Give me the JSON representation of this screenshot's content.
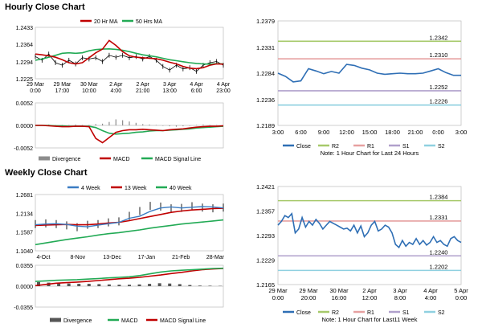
{
  "hourly": {
    "title": "Hourly Close Chart",
    "price_chart": {
      "type": "line",
      "legend": [
        "20 Hr MA",
        "50 Hrs MA"
      ],
      "y_ticks": [
        "1.2433",
        "1.2364",
        "1.2294",
        "1.2225"
      ],
      "ylim": [
        1.2225,
        1.2433
      ],
      "x_ticks": [
        [
          "29 Mar",
          "0:00"
        ],
        [
          "29 Mar",
          "17:00"
        ],
        [
          "30 Mar",
          "10:00"
        ],
        [
          "2 Apr",
          "4:00"
        ],
        [
          "2 Apr",
          "21:00"
        ],
        [
          "3 Apr",
          "13:00"
        ],
        [
          "4 Apr",
          "6:00"
        ],
        [
          "4 Apr",
          "23:00"
        ]
      ],
      "colors": {
        "ma20": "#c00000",
        "ma50": "#22aa55",
        "price": "#000000"
      },
      "series": [
        {
          "name": "20 Hr MA",
          "values": [
            1.2325,
            1.2322,
            1.2318,
            1.2312,
            1.2302,
            1.229,
            1.2285,
            1.229,
            1.231,
            1.233,
            1.2345,
            1.238,
            1.236,
            1.2335,
            1.2318,
            1.2312,
            1.231,
            1.2308,
            1.2306,
            1.23,
            1.2292,
            1.2285,
            1.2275,
            1.2268,
            1.2266,
            1.227,
            1.228,
            1.2285,
            1.2284
          ]
        },
        {
          "name": "50 Hrs MA",
          "values": [
            1.23,
            1.2305,
            1.2312,
            1.232,
            1.2328,
            1.233,
            1.2328,
            1.233,
            1.2338,
            1.2343,
            1.2345,
            1.2346,
            1.2344,
            1.234,
            1.2335,
            1.2328,
            1.2322,
            1.2318,
            1.2314,
            1.2308,
            1.2302,
            1.2298,
            1.2294,
            1.229,
            1.2287,
            1.2285,
            1.2284,
            1.2286,
            1.2285
          ]
        },
        {
          "name": "Close",
          "values": [
            1.2315,
            1.23,
            1.2325,
            1.229,
            1.228,
            1.23,
            1.2285,
            1.231,
            1.2305,
            1.231,
            1.2295,
            1.232,
            1.2312,
            1.232,
            1.231,
            1.2315,
            1.2305,
            1.2315,
            1.23,
            1.2275,
            1.226,
            1.228,
            1.2265,
            1.227,
            1.2255,
            1.228,
            1.229,
            1.2295,
            1.228
          ]
        }
      ]
    },
    "macd_chart": {
      "type": "bar",
      "y_ticks": [
        "0.0052",
        "0.0000",
        "-0.0052"
      ],
      "ylim": [
        -0.0052,
        0.0052
      ],
      "legend": [
        "Divergence",
        "MACD",
        "MACD Signal Line"
      ],
      "colors": {
        "divergence": "#8c8c8c",
        "macd": "#c00000",
        "signal": "#22aa55"
      },
      "divergence": [
        0.0001,
        0.0001,
        0.0002,
        0.0001,
        0.0001,
        0.0001,
        0.0002,
        0.0001,
        0.0001,
        0.0003,
        0.0004,
        0.0008,
        0.0014,
        0.0012,
        0.0009,
        0.0006,
        0.0003,
        0.0002,
        0.0001,
        -0.0001,
        -0.0002,
        -0.0003,
        -0.0002,
        -0.0001,
        0.0001,
        0.0002,
        0.0001,
        0.0001,
        0.0
      ],
      "macd": [
        0.0,
        0.0,
        -0.0001,
        -0.0002,
        -0.0003,
        -0.0003,
        -0.0002,
        -0.0002,
        -0.0003,
        -0.003,
        -0.004,
        -0.0028,
        -0.0016,
        -0.0012,
        -0.001,
        -0.001,
        -0.0009,
        -0.001,
        -0.0011,
        -0.0012,
        -0.001,
        -0.0009,
        -0.0008,
        -0.0006,
        -0.0004,
        -0.0003,
        -0.0002,
        -0.0002,
        -0.0001
      ],
      "signal": [
        0.0,
        0.0,
        0.0,
        -0.0001,
        -0.0001,
        -0.0002,
        -0.0002,
        -0.0002,
        -0.0002,
        -0.0005,
        -0.0012,
        -0.0018,
        -0.002,
        -0.0019,
        -0.0018,
        -0.0016,
        -0.0015,
        -0.0013,
        -0.0012,
        -0.0012,
        -0.0011,
        -0.001,
        -0.0009,
        -0.0008,
        -0.0006,
        -0.0005,
        -0.0004,
        -0.0003,
        -0.0002
      ]
    },
    "last24": {
      "type": "line",
      "y_ticks": [
        "1.2379",
        "1.2331",
        "1.2284",
        "1.2236",
        "1.2189"
      ],
      "ylim": [
        1.2189,
        1.2379
      ],
      "x_ticks": [
        "3:00",
        "6:00",
        "9:00",
        "12:00",
        "15:00",
        "18:00",
        "21:00",
        "0:00",
        "3:00"
      ],
      "levels": [
        {
          "name": "R2",
          "value": 1.2342,
          "label": "1.2342",
          "color": "#a6c96a"
        },
        {
          "name": "R1",
          "value": 1.231,
          "label": "1.2310",
          "color": "#e6a0a0"
        },
        {
          "name": "S1",
          "value": 1.2252,
          "label": "1.2252",
          "color": "#b0a0cc"
        },
        {
          "name": "S2",
          "value": 1.2226,
          "label": "1.2226",
          "color": "#8fd0e0"
        }
      ],
      "close": [
        1.2284,
        1.2278,
        1.2268,
        1.227,
        1.2292,
        1.2288,
        1.2283,
        1.2287,
        1.2284,
        1.23,
        1.2298,
        1.2293,
        1.229,
        1.2284,
        1.2282,
        1.2283,
        1.2284,
        1.2283,
        1.2283,
        1.2284,
        1.2288,
        1.2292,
        1.2285,
        1.228,
        1.228
      ],
      "legend": [
        "Close",
        "R2",
        "R1",
        "S1",
        "S2"
      ],
      "note": "Note: 1 Hour Chart for Last 24 Hours"
    }
  },
  "weekly": {
    "title": "Weekly Close Chart",
    "price_chart": {
      "type": "line",
      "legend": [
        "4 Week",
        "13 Week",
        "40 Week"
      ],
      "y_ticks": [
        "1.2681",
        "1.2134",
        "1.1587",
        "1.1040"
      ],
      "ylim": [
        1.104,
        1.2681
      ],
      "x_ticks": [
        "4-Oct",
        "8-Nov",
        "13-Dec",
        "17-Jan",
        "21-Feb",
        "28-Mar"
      ],
      "colors": {
        "w4": "#3a7cc3",
        "w13": "#c00000",
        "w40": "#22aa55",
        "price": "#000000"
      },
      "series": [
        {
          "name": "4 Week",
          "values": [
            1.18,
            1.182,
            1.183,
            1.181,
            1.176,
            1.174,
            1.179,
            1.183,
            1.187,
            1.199,
            1.205,
            1.219,
            1.229,
            1.232,
            1.229,
            1.231,
            1.233,
            1.232,
            1.229
          ]
        },
        {
          "name": "13 Week",
          "values": [
            1.178,
            1.179,
            1.18,
            1.181,
            1.18,
            1.18,
            1.182,
            1.185,
            1.187,
            1.192,
            1.198,
            1.204,
            1.21,
            1.216,
            1.22,
            1.223,
            1.225,
            1.227,
            1.228
          ]
        },
        {
          "name": "40 Week",
          "values": [
            1.122,
            1.127,
            1.132,
            1.137,
            1.141,
            1.145,
            1.15,
            1.154,
            1.157,
            1.161,
            1.165,
            1.17,
            1.174,
            1.178,
            1.182,
            1.185,
            1.188,
            1.191,
            1.194
          ]
        },
        {
          "name": "Close",
          "values": [
            1.182,
            1.184,
            1.182,
            1.178,
            1.173,
            1.18,
            1.182,
            1.187,
            1.19,
            1.206,
            1.22,
            1.235,
            1.233,
            1.228,
            1.229,
            1.234,
            1.23,
            1.228,
            1.23
          ]
        }
      ]
    },
    "macd_chart": {
      "type": "bar",
      "y_ticks": [
        "0.0355",
        "0.0000",
        "-0.0355"
      ],
      "ylim": [
        -0.0355,
        0.0355
      ],
      "legend": [
        "Divergence",
        "MACD",
        "MACD Signal Line"
      ],
      "colors": {
        "divergence": "#555555",
        "macd": "#22aa55",
        "signal": "#c00000"
      },
      "divergence": [
        0.007,
        0.006,
        0.005,
        0.0045,
        0.004,
        0.004,
        0.0035,
        0.003,
        0.0025,
        0.0025,
        0.003,
        0.004,
        0.005,
        0.0045,
        0.0035,
        0.002,
        0.001,
        0.0008,
        0.0005
      ],
      "macd": [
        0.008,
        0.009,
        0.01,
        0.0105,
        0.011,
        0.012,
        0.013,
        0.014,
        0.015,
        0.016,
        0.018,
        0.021,
        0.024,
        0.026,
        0.027,
        0.028,
        0.029,
        0.03,
        0.0305
      ],
      "signal": [
        0.001,
        0.003,
        0.005,
        0.006,
        0.007,
        0.008,
        0.0095,
        0.011,
        0.0125,
        0.0135,
        0.015,
        0.017,
        0.019,
        0.0215,
        0.0235,
        0.026,
        0.028,
        0.0292,
        0.03
      ]
    },
    "last1week": {
      "type": "line",
      "y_ticks": [
        "1.2421",
        "1.2357",
        "1.2293",
        "1.2229",
        "1.2165"
      ],
      "ylim": [
        1.2165,
        1.2421
      ],
      "x_ticks": [
        [
          "29 Mar",
          "0:00"
        ],
        [
          "29 Mar",
          "20:00"
        ],
        [
          "30 Mar",
          "16:00"
        ],
        [
          "2 Apr",
          "12:00"
        ],
        [
          "3 Apr",
          "8:00"
        ],
        [
          "4 Apr",
          "4:00"
        ],
        [
          "5 Apr",
          "0:00"
        ]
      ],
      "levels": [
        {
          "name": "R2",
          "value": 1.2384,
          "label": "1.2384",
          "color": "#a6c96a"
        },
        {
          "name": "R1",
          "value": 1.2331,
          "label": "1.2331",
          "color": "#e6a0a0"
        },
        {
          "name": "S1",
          "value": 1.224,
          "label": "1.2240",
          "color": "#b0a0cc"
        },
        {
          "name": "S2",
          "value": 1.2202,
          "label": "1.2202",
          "color": "#8fd0e0"
        }
      ],
      "close": [
        1.232,
        1.233,
        1.2345,
        1.234,
        1.235,
        1.23,
        1.231,
        1.234,
        1.2315,
        1.233,
        1.232,
        1.2335,
        1.2325,
        1.231,
        1.232,
        1.233,
        1.2325,
        1.232,
        1.2315,
        1.231,
        1.2312,
        1.2305,
        1.232,
        1.23,
        1.2318,
        1.229,
        1.23,
        1.232,
        1.233,
        1.2305,
        1.231,
        1.232,
        1.2315,
        1.23,
        1.227,
        1.2262,
        1.228,
        1.2265,
        1.2275,
        1.227,
        1.2285,
        1.227,
        1.228,
        1.2268,
        1.2275,
        1.229,
        1.2275,
        1.228,
        1.227,
        1.2265,
        1.2285,
        1.229,
        1.228,
        1.2275
      ],
      "legend": [
        "Close",
        "R2",
        "R1",
        "S1",
        "S2"
      ],
      "note": "Note: 1 Hour Chart for Last11 Week"
    }
  },
  "chart_data": [
    {
      "type": "line",
      "title": "Hourly Close Chart",
      "series": [
        "20 Hr MA",
        "50 Hrs MA"
      ],
      "ylim": [
        1.2225,
        1.2433
      ]
    },
    {
      "type": "bar",
      "title": "",
      "series": [
        "Divergence",
        "MACD",
        "MACD Signal Line"
      ],
      "ylim": [
        -0.0052,
        0.0052
      ]
    },
    {
      "type": "line",
      "title": "",
      "series": [
        "Close",
        "R2",
        "R1",
        "S1",
        "S2"
      ],
      "ylim": [
        1.2189,
        1.2379
      ]
    },
    {
      "type": "line",
      "title": "Weekly Close Chart",
      "series": [
        "4 Week",
        "13 Week",
        "40 Week"
      ],
      "ylim": [
        1.104,
        1.2681
      ]
    },
    {
      "type": "bar",
      "title": "",
      "series": [
        "Divergence",
        "MACD",
        "MACD Signal Line"
      ],
      "ylim": [
        -0.0355,
        0.0355
      ]
    },
    {
      "type": "line",
      "title": "",
      "series": [
        "Close",
        "R2",
        "R1",
        "S1",
        "S2"
      ],
      "ylim": [
        1.2165,
        1.2421
      ]
    }
  ]
}
